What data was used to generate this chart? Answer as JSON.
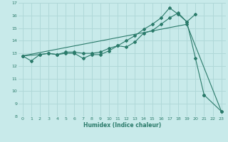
{
  "xlabel": "Humidex (Indice chaleur)",
  "bg_color": "#c8eaea",
  "grid_color": "#b0d8d8",
  "line_color": "#2a7a6a",
  "xlim": [
    -0.5,
    23.5
  ],
  "ylim": [
    8,
    17
  ],
  "xticks": [
    0,
    1,
    2,
    3,
    4,
    5,
    6,
    7,
    8,
    9,
    10,
    11,
    12,
    13,
    14,
    15,
    16,
    17,
    18,
    19,
    20,
    21,
    22,
    23
  ],
  "yticks": [
    8,
    9,
    10,
    11,
    12,
    13,
    14,
    15,
    16,
    17
  ],
  "line1_x": [
    0,
    1,
    2,
    3,
    4,
    5,
    6,
    7,
    8,
    9,
    10,
    11,
    12,
    13,
    14,
    15,
    16,
    17,
    18,
    19,
    20,
    21,
    23
  ],
  "line1_y": [
    12.8,
    12.4,
    12.9,
    13.0,
    12.9,
    13.0,
    13.0,
    12.6,
    12.9,
    12.9,
    13.2,
    13.6,
    13.5,
    13.9,
    14.6,
    14.8,
    15.3,
    15.8,
    16.2,
    15.5,
    12.6,
    9.7,
    8.4
  ],
  "line2_x": [
    0,
    2,
    3,
    4,
    5,
    6,
    7,
    8,
    9,
    10,
    11,
    12,
    13,
    14,
    15,
    16,
    17,
    18,
    19,
    20
  ],
  "line2_y": [
    12.8,
    12.9,
    13.0,
    12.9,
    13.1,
    13.1,
    13.0,
    13.0,
    13.1,
    13.4,
    13.6,
    14.0,
    14.4,
    14.9,
    15.3,
    15.8,
    16.6,
    16.1,
    15.5,
    16.1
  ],
  "line3_x": [
    0,
    19,
    23
  ],
  "line3_y": [
    12.8,
    15.3,
    8.4
  ]
}
